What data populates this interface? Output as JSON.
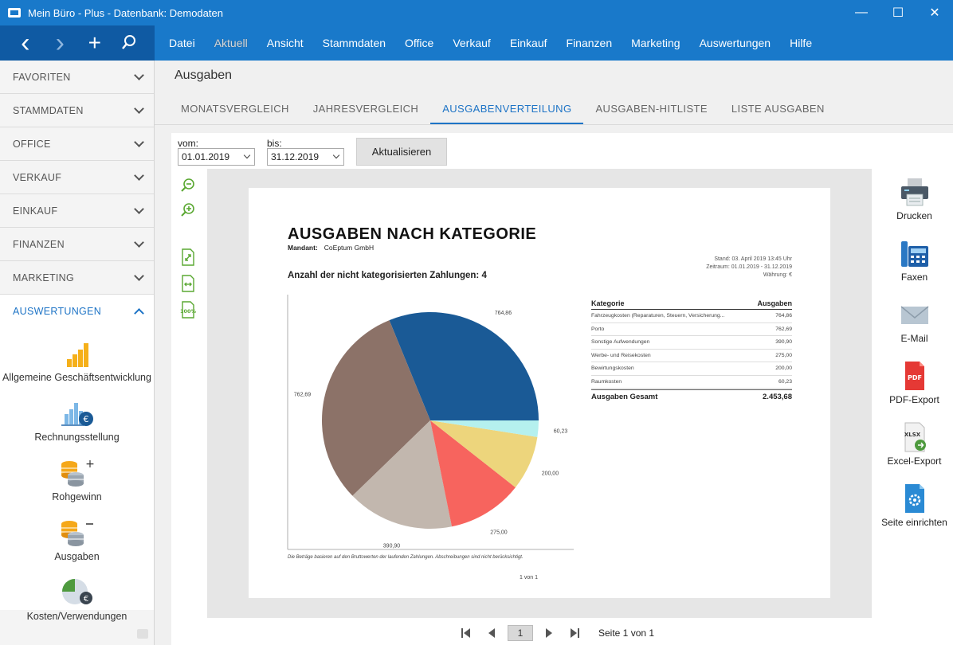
{
  "window": {
    "title": "Mein Büro - Plus - Datenbank: Demodaten",
    "minimize": "—",
    "maximize": "☐",
    "close": "✕"
  },
  "nav_tools": {
    "back": "‹",
    "forward": "›",
    "add": "+",
    "search": "⚲"
  },
  "menu": [
    "Datei",
    "Aktuell",
    "Ansicht",
    "Stammdaten",
    "Office",
    "Verkauf",
    "Einkauf",
    "Finanzen",
    "Marketing",
    "Auswertungen",
    "Hilfe"
  ],
  "sidebar": {
    "groups": [
      "FAVORITEN",
      "STAMMDATEN",
      "OFFICE",
      "VERKAUF",
      "EINKAUF",
      "FINANZEN",
      "MARKETING"
    ],
    "open_group": "AUSWERTUNGEN",
    "items": [
      "Allgemeine Geschäftsentwicklung",
      "Rechnungsstellung",
      "Rohgewinn",
      "Ausgaben",
      "Kosten/Verwendungen"
    ]
  },
  "page": {
    "title": "Ausgaben",
    "tabs": [
      "MONATSVERGLEICH",
      "JAHRESVERGLEICH",
      "AUSGABENVERTEILUNG",
      "AUSGABEN-HITLISTE",
      "LISTE AUSGABEN"
    ],
    "active_tab": "AUSGABENVERTEILUNG"
  },
  "filters": {
    "from_label": "vom:",
    "from_value": "01.01.2019",
    "to_label": "bis:",
    "to_value": "31.12.2019",
    "update_button": "Aktualisieren"
  },
  "report": {
    "title": "AUSGABEN NACH KATEGORIE",
    "mandant_label": "Mandant:",
    "mandant_value": "CoEptum GmbH",
    "stand": "Stand:  03. April 2019 13:45 Uhr",
    "zeitraum": "Zeitraum: 01.01.2019 - 31.12.2019",
    "waehrung": "Währung: €",
    "uncategorized": "Anzahl der nicht kategorisierten Zahlungen: 4",
    "table_header_category": "Kategorie",
    "table_header_amount": "Ausgaben",
    "rows": [
      {
        "category": "Fahrzeugkosten (Reparaturen, Steuern, Versicherung...",
        "amount": "764,86"
      },
      {
        "category": "Porto",
        "amount": "762,69"
      },
      {
        "category": "Sonstige Aufwendungen",
        "amount": "390,90"
      },
      {
        "category": "Werbe- und Reisekosten",
        "amount": "275,00"
      },
      {
        "category": "Bewirtungskosten",
        "amount": "200,00"
      },
      {
        "category": "Raumkosten",
        "amount": "60,23"
      }
    ],
    "total_label": "Ausgaben Gesamt",
    "total_value": "2.453,68",
    "note": "Die Beträge basieren auf den Bruttowerten der laufenden Zahlungen. Abschreibungen sind nicht berücksichtigt.",
    "page_of": "1 von 1"
  },
  "chart_data": {
    "type": "pie",
    "categories": [
      "Fahrzeugkosten (Reparaturen, Steuern, Versicherung...",
      "Porto",
      "Sonstige Aufwendungen",
      "Werbe- und Reisekosten",
      "Bewirtungskosten",
      "Raumkosten"
    ],
    "values": [
      764.86,
      762.69,
      390.9,
      275.0,
      200.0,
      60.23
    ],
    "labels": [
      "764,86",
      "762,69",
      "390,90",
      "275,00",
      "200,00",
      "60,23"
    ],
    "colors": [
      "#1a5a96",
      "#8c7268",
      "#c2b7ae",
      "#f7645e",
      "#edd57c",
      "#b5f0ee"
    ]
  },
  "actions": [
    "Drucken",
    "Faxen",
    "E-Mail",
    "PDF-Export",
    "Excel-Export",
    "Seite einrichten"
  ],
  "action_icon_text": {
    "pdf": "PDF",
    "xlsx": "XLSX",
    "zoom100": "100%"
  },
  "pager": {
    "current": "1",
    "text": "Seite 1 von 1"
  }
}
